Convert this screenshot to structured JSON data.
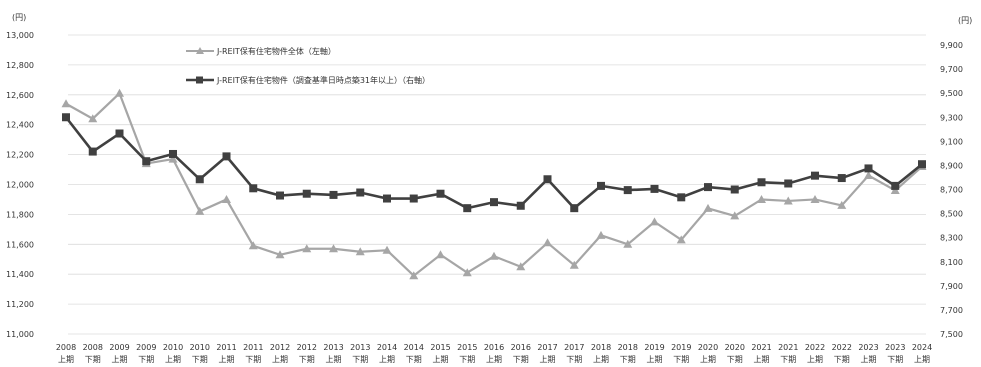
{
  "chart_data": {
    "type": "line",
    "left_unit": "(円)",
    "right_unit": "(円)",
    "left_axis": {
      "ylim": [
        11000,
        13000
      ],
      "ticks": [
        "11,000",
        "11,200",
        "11,400",
        "11,600",
        "11,800",
        "12,000",
        "12,200",
        "12,400",
        "12,600",
        "12,800",
        "13,000"
      ]
    },
    "right_axis": {
      "ylim": [
        7500,
        10000
      ],
      "ticks": [
        "7,500",
        "7,700",
        "7,900",
        "8,100",
        "8,300",
        "8,500",
        "8,700",
        "8,900",
        "9,100",
        "9,300",
        "9,500",
        "9,700",
        "9,900"
      ]
    },
    "categories": [
      {
        "year": "2008",
        "half": "上期"
      },
      {
        "year": "2008",
        "half": "下期"
      },
      {
        "year": "2009",
        "half": "上期"
      },
      {
        "year": "2009",
        "half": "下期"
      },
      {
        "year": "2010",
        "half": "上期"
      },
      {
        "year": "2010",
        "half": "下期"
      },
      {
        "year": "2011",
        "half": "上期"
      },
      {
        "year": "2011",
        "half": "下期"
      },
      {
        "year": "2012",
        "half": "上期"
      },
      {
        "year": "2012",
        "half": "下期"
      },
      {
        "year": "2013",
        "half": "上期"
      },
      {
        "year": "2013",
        "half": "下期"
      },
      {
        "year": "2014",
        "half": "上期"
      },
      {
        "year": "2014",
        "half": "下期"
      },
      {
        "year": "2015",
        "half": "上期"
      },
      {
        "year": "2015",
        "half": "下期"
      },
      {
        "year": "2016",
        "half": "上期"
      },
      {
        "year": "2016",
        "half": "下期"
      },
      {
        "year": "2017",
        "half": "上期"
      },
      {
        "year": "2017",
        "half": "下期"
      },
      {
        "year": "2018",
        "half": "上期"
      },
      {
        "year": "2018",
        "half": "下期"
      },
      {
        "year": "2019",
        "half": "上期"
      },
      {
        "year": "2019",
        "half": "下期"
      },
      {
        "year": "2020",
        "half": "上期"
      },
      {
        "year": "2020",
        "half": "下期"
      },
      {
        "year": "2021",
        "half": "上期"
      },
      {
        "year": "2021",
        "half": "下期"
      },
      {
        "year": "2022",
        "half": "上期"
      },
      {
        "year": "2022",
        "half": "下期"
      },
      {
        "year": "2023",
        "half": "上期"
      },
      {
        "year": "2023",
        "half": "下期"
      },
      {
        "year": "2024",
        "half": "上期"
      }
    ],
    "series": [
      {
        "name": "J-REIT保有住宅物件全体（左軸）",
        "axis": "left",
        "marker": "triangle",
        "color": "#a6a6a6",
        "values": [
          12540,
          12440,
          12610,
          12140,
          12170,
          11820,
          11900,
          11590,
          11530,
          11570,
          11570,
          11550,
          11560,
          11390,
          11530,
          11410,
          11520,
          11450,
          11610,
          11460,
          11660,
          11600,
          11750,
          11630,
          11840,
          11790,
          11900,
          11890,
          11900,
          11860,
          12060,
          11960,
          12120
        ]
      },
      {
        "name": "J-REIT保有住宅物件（調査基準日時点築31年以上）（右軸）",
        "axis": "right",
        "marker": "square",
        "color": "#404040",
        "values": [
          9300,
          9015,
          9165,
          8935,
          8995,
          8785,
          8975,
          8710,
          8650,
          8665,
          8655,
          8675,
          8625,
          8625,
          8665,
          8545,
          8595,
          8565,
          8785,
          8545,
          8730,
          8695,
          8705,
          8635,
          8720,
          8700,
          8760,
          8750,
          8815,
          8795,
          8875,
          8730,
          8910
        ]
      }
    ]
  }
}
